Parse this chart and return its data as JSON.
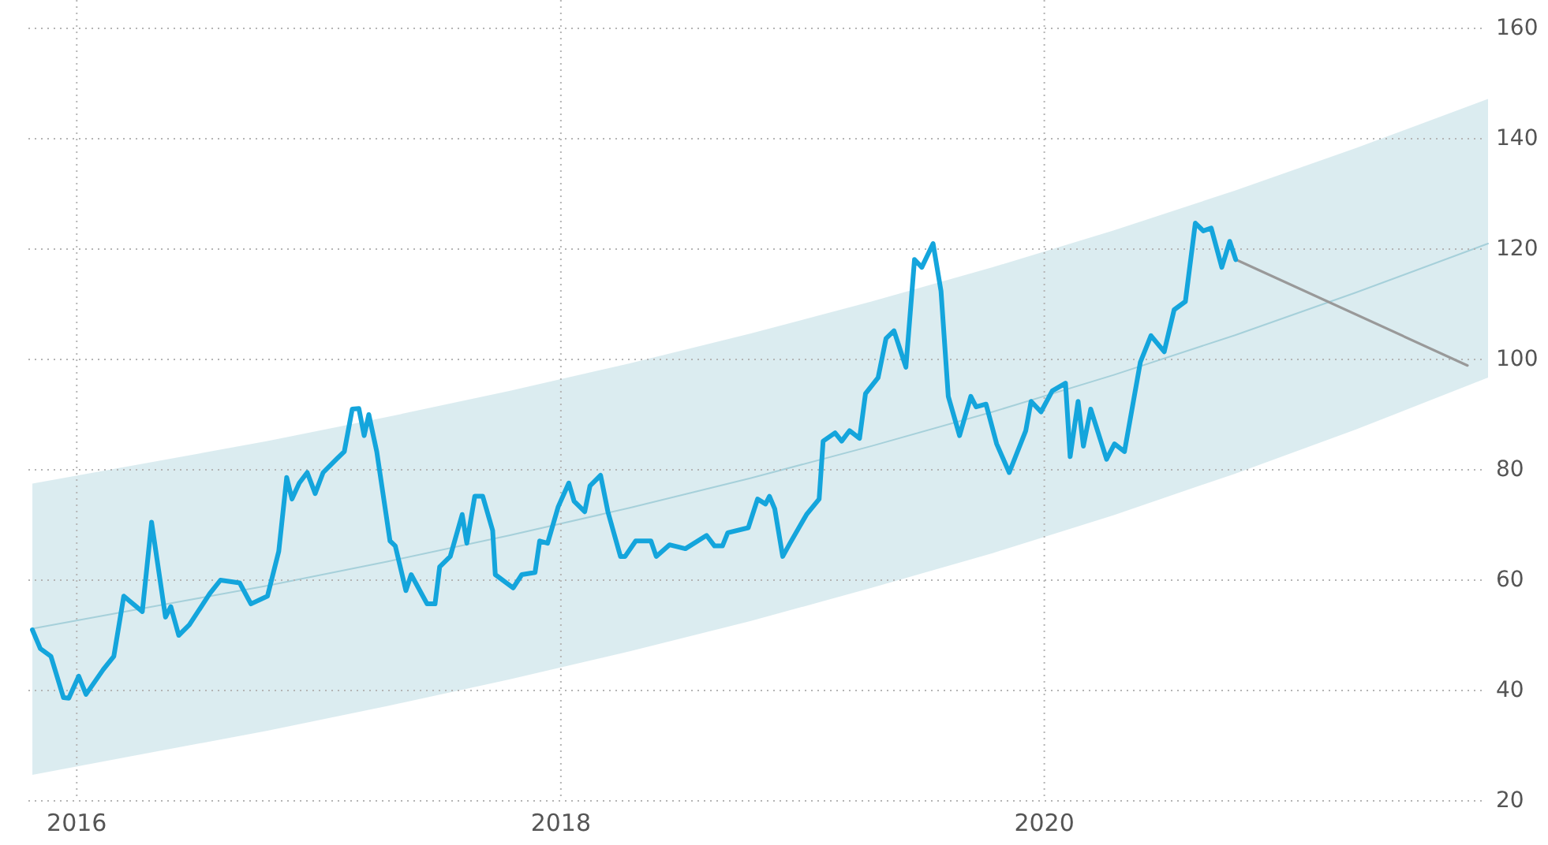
{
  "chart_data": {
    "type": "line",
    "xlim": [
      "2015-10-20",
      "2021-11-01"
    ],
    "xticks": [
      {
        "value": "2016-01-01",
        "label": "2016"
      },
      {
        "value": "2018-01-01",
        "label": "2018"
      },
      {
        "value": "2020-01-01",
        "label": "2020"
      }
    ],
    "ylim": [
      20,
      160
    ],
    "yticks": [
      20,
      40,
      60,
      80,
      100,
      120,
      140,
      160
    ],
    "grid": true,
    "marker": "none",
    "line_style": "solid",
    "series": [
      {
        "color": "#a6d0da",
        "x": [
          "2015-10-26",
          "2016-04-15",
          "2016-10-15",
          "2017-04-15",
          "2017-10-15",
          "2018-04-15",
          "2018-10-15",
          "2019-04-15",
          "2019-10-15",
          "2020-04-15",
          "2020-10-15",
          "2021-04-15",
          "2021-11-01"
        ],
        "values": [
          51.2,
          55.0,
          59.0,
          63.4,
          68.1,
          73.1,
          78.5,
          84.3,
          90.5,
          97.2,
          104.4,
          112.1,
          121.0
        ],
        "lower": [
          24.7,
          28.6,
          32.7,
          37.2,
          42.0,
          47.1,
          52.6,
          58.6,
          64.9,
          71.8,
          79.3,
          87.3,
          96.7
        ],
        "upper": [
          77.5,
          81.2,
          85.2,
          89.6,
          94.3,
          99.3,
          104.7,
          110.5,
          116.7,
          123.4,
          130.6,
          138.3,
          147.2
        ]
      },
      {
        "color": "#999999",
        "x": [
          "2020-10-16",
          "2021-10-01"
        ],
        "values": [
          118.1,
          98.9
        ]
      },
      {
        "color": "#14a5dc",
        "x": [
          "2015-10-26",
          "2015-11-07",
          "2015-11-23",
          "2015-12-12",
          "2015-12-20",
          "2016-01-04",
          "2016-01-15",
          "2016-02-10",
          "2016-02-26",
          "2016-03-12",
          "2016-04-09",
          "2016-04-23",
          "2016-05-14",
          "2016-05-22",
          "2016-06-03",
          "2016-06-19",
          "2016-07-20",
          "2016-08-05",
          "2016-09-03",
          "2016-09-20",
          "2016-10-15",
          "2016-11-01",
          "2016-11-13",
          "2016-11-21",
          "2016-12-02",
          "2016-12-14",
          "2016-12-26",
          "2017-01-07",
          "2017-01-27",
          "2017-02-08",
          "2017-02-20",
          "2017-03-02",
          "2017-03-10",
          "2017-03-17",
          "2017-03-29",
          "2017-04-18",
          "2017-04-26",
          "2017-05-12",
          "2017-05-20",
          "2017-06-13",
          "2017-06-25",
          "2017-07-02",
          "2017-07-18",
          "2017-08-05",
          "2017-08-12",
          "2017-08-24",
          "2017-09-05",
          "2017-09-20",
          "2017-09-24",
          "2017-10-21",
          "2017-11-03",
          "2017-11-23",
          "2017-11-30",
          "2017-12-12",
          "2017-12-28",
          "2018-01-13",
          "2018-01-21",
          "2018-02-06",
          "2018-02-14",
          "2018-03-02",
          "2018-03-13",
          "2018-04-01",
          "2018-04-08",
          "2018-04-24",
          "2018-05-17",
          "2018-05-25",
          "2018-06-14",
          "2018-07-08",
          "2018-08-09",
          "2018-08-21",
          "2018-09-02",
          "2018-09-10",
          "2018-10-11",
          "2018-10-25",
          "2018-11-06",
          "2018-11-12",
          "2018-11-20",
          "2018-12-02",
          "2018-12-13",
          "2019-01-07",
          "2019-01-26",
          "2019-02-01",
          "2019-02-19",
          "2019-03-01",
          "2019-03-13",
          "2019-03-28",
          "2019-04-06",
          "2019-04-25",
          "2019-05-07",
          "2019-05-19",
          "2019-06-06",
          "2019-06-19",
          "2019-06-30",
          "2019-07-17",
          "2019-07-29",
          "2019-08-09",
          "2019-08-26",
          "2019-09-12",
          "2019-09-20",
          "2019-10-05",
          "2019-10-21",
          "2019-11-09",
          "2019-12-04",
          "2019-12-12",
          "2019-12-27",
          "2020-01-13",
          "2020-02-02",
          "2020-02-09",
          "2020-02-21",
          "2020-02-29",
          "2020-03-11",
          "2020-04-04",
          "2020-04-16",
          "2020-05-01",
          "2020-05-25",
          "2020-06-10",
          "2020-06-30",
          "2020-07-15",
          "2020-08-01",
          "2020-08-16",
          "2020-08-28",
          "2020-09-09",
          "2020-09-25",
          "2020-10-07",
          "2020-10-16"
        ],
        "values": [
          51.0,
          47.6,
          46.2,
          38.7,
          38.6,
          42.6,
          39.3,
          43.8,
          46.2,
          57.1,
          54.3,
          70.5,
          53.3,
          55.2,
          50.0,
          51.9,
          57.6,
          60.0,
          59.5,
          55.7,
          57.1,
          65.2,
          78.6,
          74.7,
          77.6,
          79.5,
          75.7,
          79.5,
          81.9,
          83.3,
          91.0,
          91.1,
          86.2,
          90.0,
          83.3,
          67.1,
          66.2,
          58.1,
          61.0,
          55.7,
          55.7,
          62.4,
          64.3,
          71.9,
          66.7,
          75.2,
          75.2,
          69.0,
          61.0,
          58.6,
          61.0,
          61.4,
          67.1,
          66.7,
          73.3,
          77.6,
          74.3,
          72.4,
          77.1,
          79.0,
          72.4,
          64.3,
          64.3,
          67.1,
          67.1,
          64.3,
          66.4,
          65.7,
          68.1,
          66.2,
          66.2,
          68.6,
          69.5,
          74.7,
          73.8,
          75.2,
          72.9,
          64.3,
          66.7,
          71.9,
          74.7,
          85.2,
          86.7,
          85.2,
          87.1,
          85.7,
          93.8,
          96.7,
          103.8,
          105.2,
          98.6,
          118.1,
          116.7,
          121.0,
          112.4,
          93.3,
          86.2,
          93.3,
          91.4,
          91.9,
          84.7,
          79.5,
          87.1,
          92.4,
          90.5,
          94.3,
          95.7,
          82.4,
          92.4,
          84.3,
          91.0,
          81.9,
          84.7,
          83.3,
          99.5,
          104.3,
          101.4,
          109.0,
          110.5,
          124.7,
          123.3,
          123.8,
          116.7,
          121.4,
          118.1
        ]
      }
    ]
  }
}
